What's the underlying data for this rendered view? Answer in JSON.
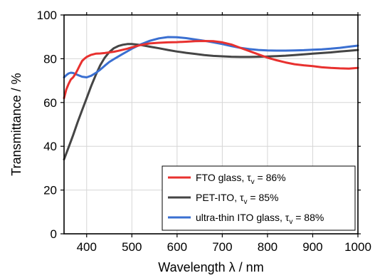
{
  "chart_data": {
    "type": "line",
    "title": "",
    "xlabel": "Wavelength λ / nm",
    "ylabel": "Transmittance / %",
    "xlim": [
      350,
      1000
    ],
    "ylim": [
      0,
      100
    ],
    "xticks": [
      400,
      500,
      600,
      700,
      800,
      900,
      1000
    ],
    "yticks": [
      0,
      20,
      40,
      60,
      80,
      100
    ],
    "grid": true,
    "legend_position": "bottom-right",
    "series": [
      {
        "name": "FTO glass, τv = 86%",
        "legend_parts": [
          "FTO glass, τ",
          "v",
          " = 86%"
        ],
        "color": "#e8312f",
        "x": [
          350,
          355,
          360,
          365,
          370,
          375,
          380,
          385,
          390,
          395,
          400,
          410,
          420,
          430,
          440,
          450,
          460,
          470,
          480,
          490,
          500,
          520,
          540,
          560,
          580,
          600,
          620,
          640,
          660,
          680,
          700,
          720,
          740,
          760,
          780,
          800,
          820,
          840,
          860,
          880,
          900,
          920,
          940,
          960,
          980,
          1000
        ],
        "y": [
          62,
          66,
          68.5,
          70.5,
          71.5,
          73,
          75,
          77,
          79,
          80,
          80.8,
          81.8,
          82.3,
          82.4,
          82.6,
          82.9,
          83.2,
          83.6,
          84.1,
          84.6,
          85.2,
          86.3,
          87,
          87.3,
          87.5,
          87.6,
          87.8,
          88,
          88.1,
          88,
          87.5,
          86.5,
          85,
          83.5,
          82,
          80.5,
          79.3,
          78.3,
          77.5,
          77,
          76.6,
          76.1,
          75.8,
          75.6,
          75.5,
          75.8
        ]
      },
      {
        "name": "PET-ITO, τv = 85%",
        "legend_parts": [
          "PET-ITO, τ",
          "v",
          " = 85%"
        ],
        "color": "#454545",
        "x": [
          350,
          360,
          370,
          380,
          390,
          400,
          410,
          420,
          430,
          440,
          450,
          460,
          470,
          480,
          490,
          500,
          520,
          540,
          560,
          580,
          600,
          620,
          640,
          660,
          680,
          700,
          720,
          740,
          760,
          780,
          800,
          820,
          840,
          860,
          880,
          900,
          920,
          940,
          960,
          980,
          1000
        ],
        "y": [
          34,
          39.5,
          45,
          51,
          56.5,
          62,
          67.5,
          72.5,
          77,
          80.5,
          83,
          84.8,
          85.8,
          86.4,
          86.7,
          86.7,
          86.3,
          85.5,
          84.8,
          84,
          83.3,
          82.7,
          82.2,
          81.7,
          81.3,
          81.1,
          80.9,
          80.8,
          80.8,
          80.9,
          81,
          81.2,
          81.4,
          81.7,
          82,
          82.3,
          82.6,
          82.9,
          83.3,
          83.6,
          84
        ]
      },
      {
        "name": "ultra-thin ITO glass, τv = 88%",
        "legend_parts": [
          "ultra-thin ITO glass, τ",
          "v",
          " = 88%"
        ],
        "color": "#3a6fd1",
        "x": [
          350,
          355,
          360,
          365,
          370,
          380,
          390,
          400,
          410,
          420,
          430,
          440,
          450,
          460,
          470,
          480,
          490,
          500,
          510,
          520,
          540,
          560,
          580,
          600,
          620,
          640,
          660,
          680,
          700,
          720,
          740,
          760,
          780,
          800,
          820,
          840,
          860,
          880,
          900,
          920,
          940,
          960,
          980,
          1000
        ],
        "y": [
          71.5,
          72.5,
          73.3,
          73.6,
          73.5,
          72.6,
          71.8,
          71.5,
          72.2,
          73.5,
          75,
          76.8,
          78.5,
          79.8,
          81,
          82.2,
          83.4,
          84.6,
          85.6,
          86.6,
          88.2,
          89.3,
          89.9,
          89.8,
          89.4,
          88.8,
          88.2,
          87.5,
          86.7,
          85.8,
          85,
          84.4,
          84,
          83.8,
          83.7,
          83.7,
          83.8,
          83.9,
          84.1,
          84.3,
          84.6,
          85,
          85.5,
          86
        ]
      }
    ]
  }
}
